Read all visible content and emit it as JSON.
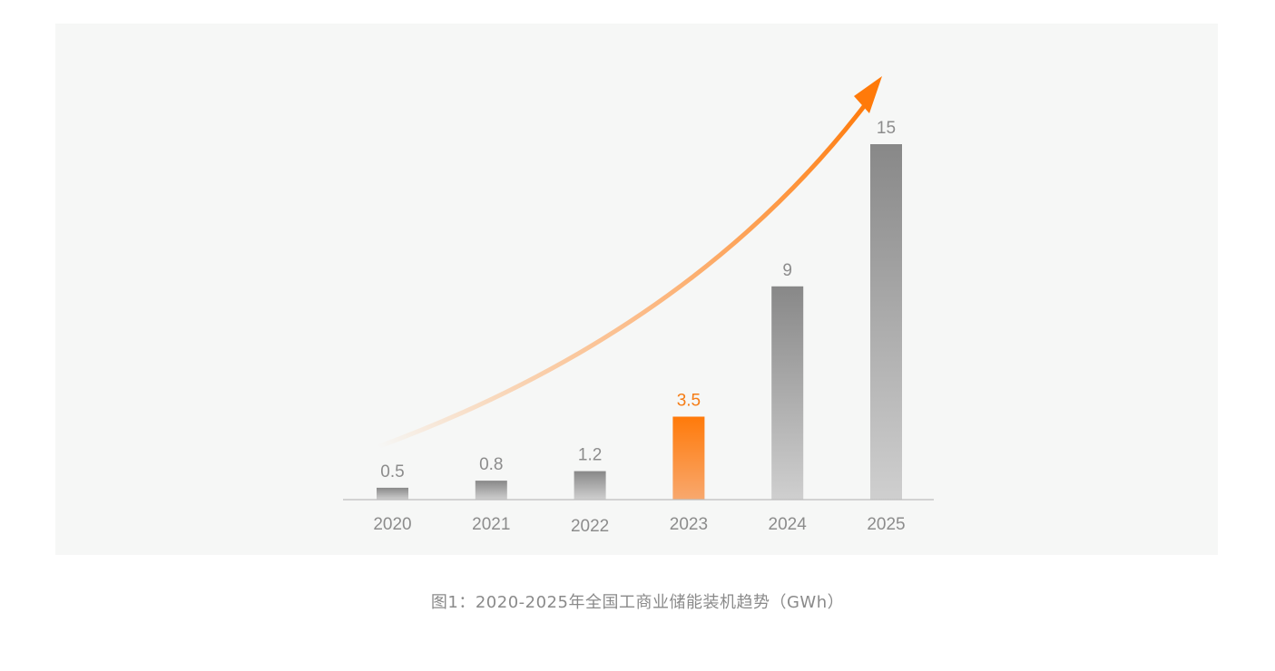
{
  "caption": "图1：2020-2025年全国工商业储能装机趋势（GWh）",
  "chart_data": {
    "type": "bar",
    "categories": [
      "2020",
      "2021",
      "2022",
      "2023",
      "2024",
      "2025"
    ],
    "values": [
      0.5,
      0.8,
      1.2,
      3.5,
      9,
      15
    ],
    "value_labels": [
      "0.5",
      "0.8",
      "1.2",
      "3.5",
      "9",
      "15"
    ],
    "highlight_category": "2023",
    "title": "",
    "xlabel": "",
    "ylabel": "",
    "ylim": [
      0,
      15
    ],
    "grid": false,
    "legend": "none",
    "trend_arrow": true,
    "colors": {
      "panel_background": "#f6f7f6",
      "bar_top": "#888888",
      "bar_bottom": "#cfcfcf",
      "highlight_top": "#ff7a0a",
      "highlight_bottom": "#f8a86e",
      "highlight_label": "#f57c15",
      "value_label": "#8c8c8c",
      "axis": "#bdbdbd",
      "arrow": "#ff7a0a"
    }
  }
}
